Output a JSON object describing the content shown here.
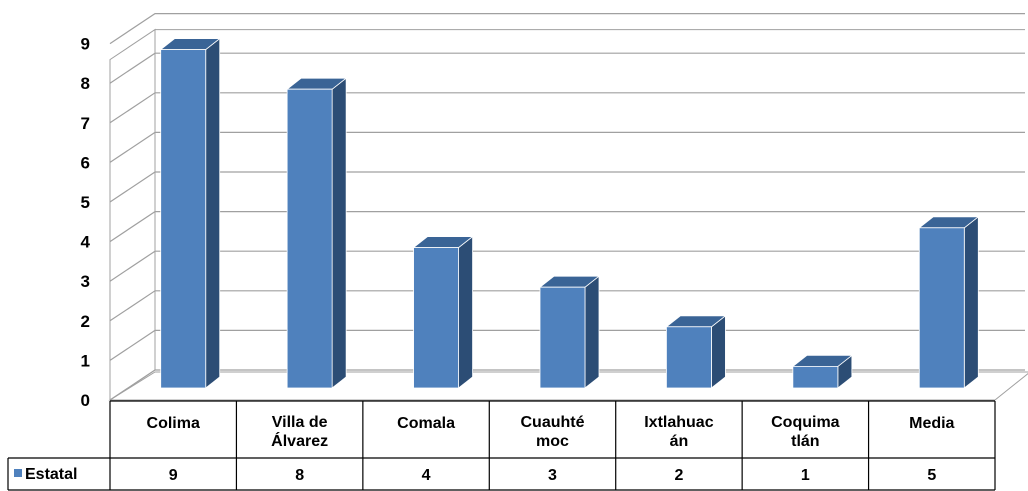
{
  "chart_data": {
    "type": "bar",
    "title": "",
    "xlabel": "",
    "ylabel": "",
    "ylim": [
      0,
      9
    ],
    "yticks": [
      "0",
      "1",
      "2",
      "3",
      "4",
      "5",
      "6",
      "7",
      "8",
      "9"
    ],
    "grid": true,
    "three_d": true,
    "categories": [
      [
        "Colima"
      ],
      [
        "Villa de",
        "Álvarez"
      ],
      [
        "Comala"
      ],
      [
        "Cuauhté",
        "moc"
      ],
      [
        "Ixtlahuac",
        "án"
      ],
      [
        "Coquima",
        "tlán"
      ],
      [
        "Media"
      ]
    ],
    "series": [
      {
        "name": "Estatal",
        "values": [
          9,
          8,
          4,
          3,
          2,
          1,
          4.5
        ],
        "table_labels": [
          "9",
          "8",
          "4",
          "3",
          "2",
          "1",
          "5"
        ]
      }
    ],
    "legend_placement": "data-table",
    "colors": {
      "bar_front": "#4f81bd",
      "bar_side": "#2c4d75",
      "bar_top": "#3a6496",
      "grid": "#a0a0a0",
      "wall": "#ffffff"
    }
  }
}
